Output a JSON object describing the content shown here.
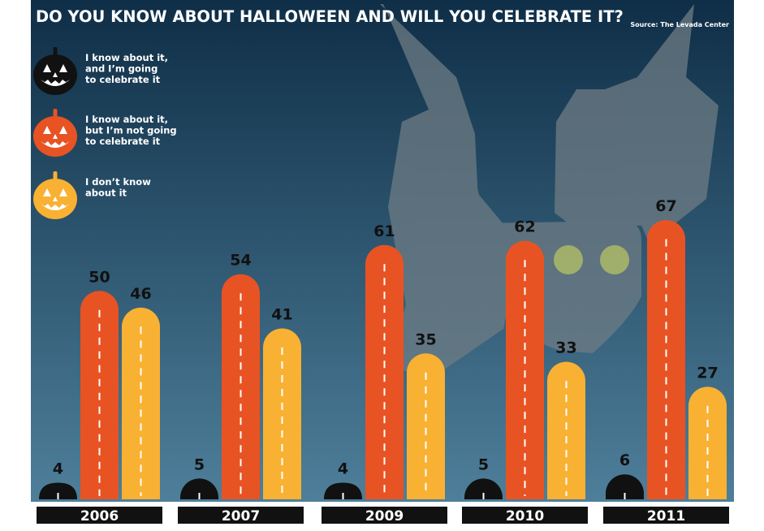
{
  "title": "DO YOU KNOW ABOUT HALLOWEEN AND WILL YOU CELEBRATE IT?",
  "source": "Source: The Levada Center",
  "legend": [
    {
      "lines": [
        "I know about it,",
        "and I’m going",
        "to celebrate it"
      ],
      "color": "#111111",
      "icon": "black-pumpkin-icon"
    },
    {
      "lines": [
        "I know about it,",
        "but I’m not going",
        "to celebrate it"
      ],
      "color": "#e85323",
      "icon": "orange-pumpkin-icon"
    },
    {
      "lines": [
        "I don’t know",
        "about it"
      ],
      "color": "#f8b133",
      "icon": "yellow-pumpkin-icon"
    }
  ],
  "colors": {
    "background_top": "#0f2e47",
    "background_bottom": "#4e7f9a",
    "celebrate": "#111111",
    "not_celebrate": "#e85323",
    "dont_know": "#f8b133",
    "bat": "#6e7c84",
    "bat_eyes": "#c6cc6a"
  },
  "chart_data": {
    "type": "bar",
    "categories": [
      "2006",
      "2007",
      "2009",
      "2010",
      "2011"
    ],
    "series": [
      {
        "name": "I know about it, and I’m going to celebrate it",
        "values": [
          4,
          5,
          4,
          5,
          6
        ]
      },
      {
        "name": "I know about it, but I’m not going to celebrate it",
        "values": [
          50,
          54,
          61,
          62,
          67
        ]
      },
      {
        "name": "I don’t know about it",
        "values": [
          46,
          41,
          35,
          33,
          27
        ]
      }
    ],
    "ylim": [
      0,
      67
    ]
  }
}
